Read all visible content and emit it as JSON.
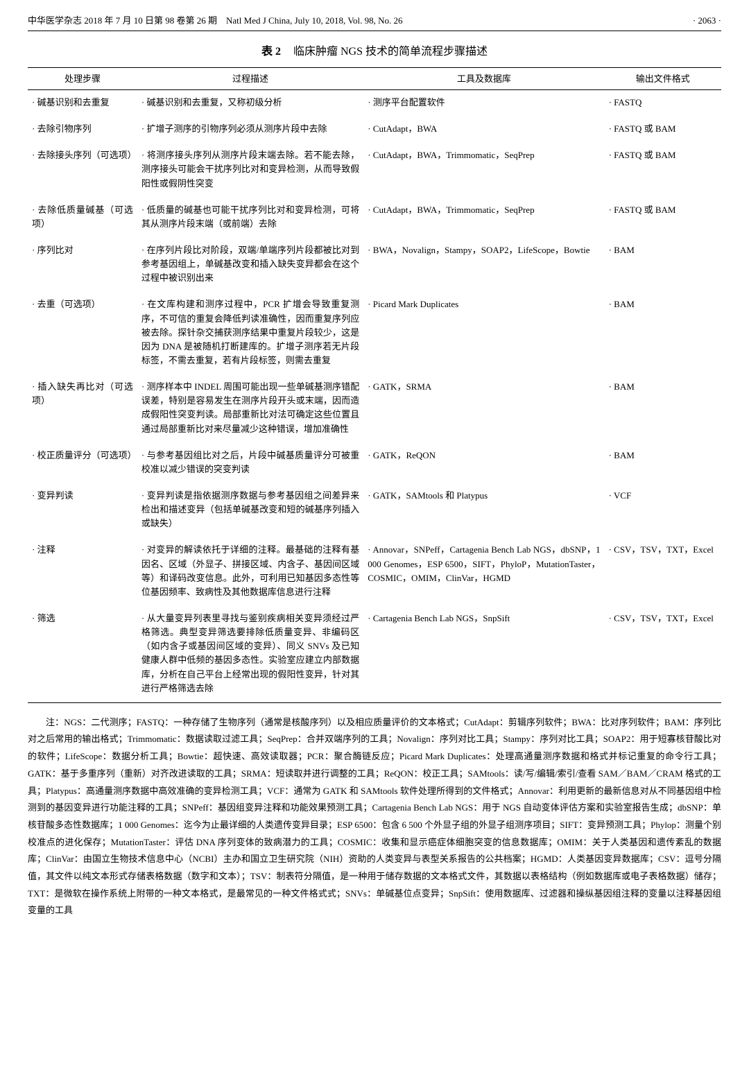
{
  "header": {
    "left": "中华医学杂志 2018 年 7 月 10 日第 98 卷第 26 期　Natl Med J China, July 10, 2018, Vol. 98, No. 26",
    "right": "· 2063 ·"
  },
  "caption": {
    "num": "表 2",
    "text": "临床肿瘤 NGS 技术的简单流程步骤描述"
  },
  "columns": {
    "c1": "处理步骤",
    "c2": "过程描述",
    "c3": "工具及数据库",
    "c4": "输出文件格式"
  },
  "rows": [
    {
      "step": "· 碱基识别和去重复",
      "desc": "· 碱基识别和去重复，又称初级分析",
      "tools": "· 测序平台配置软件",
      "out": "· FASTQ"
    },
    {
      "step": "· 去除引物序列",
      "desc": "· 扩增子测序的引物序列必须从测序片段中去除",
      "tools": "· CutAdapt，BWA",
      "out": "· FASTQ 或 BAM"
    },
    {
      "step": "· 去除接头序列（可选项）",
      "desc": "· 将测序接头序列从测序片段末端去除。若不能去除，测序接头可能会干扰序列比对和变异检测，从而导致假阳性或假阴性突变",
      "tools": "· CutAdapt，BWA，Trimmomatic，SeqPrep",
      "out": "· FASTQ 或 BAM"
    },
    {
      "step": "· 去除低质量碱基（可选项）",
      "desc": "· 低质量的碱基也可能干扰序列比对和变异检测，可将其从测序片段末端（或前端）去除",
      "tools": "· CutAdapt，BWA，Trimmomatic，SeqPrep",
      "out": "· FASTQ 或 BAM"
    },
    {
      "step": "· 序列比对",
      "desc": "· 在序列片段比对阶段，双端/单端序列片段都被比对到参考基因组上，单碱基改变和插入缺失变异都会在这个过程中被识别出来",
      "tools": "· BWA，Novalign，Stampy，SOAP2，LifeScope，Bowtie",
      "out": "· BAM"
    },
    {
      "step": "· 去重（可选项）",
      "desc": "· 在文库构建和测序过程中，PCR 扩增会导致重复测序，不可信的重复会降低判读准确性，因而重复序列应被去除。探针杂交捕获测序结果中重复片段较少，这是因为 DNA 是被随机打断建库的。扩增子测序若无片段标签，不需去重复，若有片段标签，则需去重复",
      "tools": "· Picard Mark Duplicates",
      "out": "· BAM"
    },
    {
      "step": "· 插入缺失再比对（可选项）",
      "desc": "· 测序样本中 INDEL 周围可能出现一些单碱基测序错配误差，特别是容易发生在测序片段开头或末端，因而造成假阳性突变判读。局部重新比对法可确定这些位置且通过局部重新比对来尽量减少这种错误，增加准确性",
      "tools": "· GATK，SRMA",
      "out": "· BAM"
    },
    {
      "step": "· 校正质量评分（可选项）",
      "desc": "· 与参考基因组比对之后，片段中碱基质量评分可被重校准以减少错误的突变判读",
      "tools": "· GATK，ReQON",
      "out": "· BAM"
    },
    {
      "step": "· 变异判读",
      "desc": "· 变异判读是指依据测序数据与参考基因组之间差异来检出和描述变异（包括单碱基改变和短的碱基序列插入或缺失）",
      "tools": "· GATK，SAMtools 和 Platypus",
      "out": "· VCF"
    },
    {
      "step": "· 注释",
      "desc": "· 对变异的解读依托于详细的注释。最基础的注释有基因名、区域（外显子、拼接区域、内含子、基因间区域等）和译码改变信息。此外，可利用已知基因多态性等位基因频率、致病性及其他数据库信息进行注释",
      "tools": "· Annovar，SNPeff，Cartagenia Bench Lab NGS，dbSNP，1 000 Genomes，ESP 6500，SIFT，PhyloP，MutationTaster，COSMIC，OMIM，ClinVar，HGMD",
      "out": "· CSV，TSV，TXT，Excel"
    },
    {
      "step": "· 筛选",
      "desc": "· 从大量变异列表里寻找与鉴别疾病相关变异须经过严格筛选。典型变异筛选要排除低质量变异、非编码区（如内含子或基因间区域的变异）、同义 SNVs 及已知健康人群中低频的基因多态性。实验室应建立内部数据库，分析在自己平台上经常出现的假阳性变异，针对其进行严格筛选去除",
      "tools": "· Cartagenia Bench Lab NGS，SnpSift",
      "out": "· CSV，TSV，TXT，Excel"
    }
  ],
  "footnote": "注：NGS：二代测序；FASTQ：一种存储了生物序列（通常是核酸序列）以及相应质量评价的文本格式；CutAdapt：剪辑序列软件；BWA：比对序列软件；BAM：序列比对之后常用的输出格式；Trimmomatic：数据读取过滤工具；SeqPrep：合并双端序列的工具；Novalign：序列对比工具；Stampy：序列对比工具；SOAP2：用于短寡核苷酸比对的软件；LifeScope：数据分析工具；Bowtie：超快速、高效读取器；PCR：聚合酶链反应；Picard Mark Duplicates：处理高通量测序数据和格式并标记重复的命令行工具；GATK：基于多重序列（重新）对齐改进读取的工具；SRMA：短读取并进行调整的工具；ReQON：校正工具；SAMtools：读/写/编辑/索引/查看 SAM／BAM／CRAM 格式的工具；Platypus：高通量测序数据中高效准确的变异检测工具；VCF：通常为 GATK 和 SAMtools 软件处理所得到的文件格式；Annovar：利用更新的最新信息对从不同基因组中检测到的基因变异进行功能注释的工具；SNPeff：基因组变异注释和功能效果预测工具；Cartagenia Bench Lab NGS：用于 NGS 自动变体评估方案和实验室报告生成；dbSNP：单核苷酸多态性数据库；1 000 Genomes：迄今为止最详细的人类遗传变异目录；ESP 6500：包含 6 500 个外显子组的外显子组测序项目；SIFT：变异预测工具；Phylop：测量个别校准点的进化保存；MutationTaster：评估 DNA 序列变体的致病潜力的工具；COSMIC：收集和显示癌症体细胞突变的信息数据库；OMIM：关于人类基因和遗传紊乱的数据库；ClinVar：由国立生物技术信息中心（NCBI）主办和国立卫生研究院（NIH）资助的人类变异与表型关系报告的公共档案；HGMD：人类基因变异数据库；CSV：逗号分隔值，其文件以纯文本形式存储表格数据（数字和文本）；TSV：制表符分隔值，是一种用于储存数据的文本格式文件，其数据以表格结构（例如数据库或电子表格数据）储存；TXT：是微软在操作系统上附带的一种文本格式，是最常见的一种文件格式式；SNVs：单碱基位点变异；SnpSift：使用数据库、过滤器和操纵基因组注释的变量以注释基因组变量的工具"
}
